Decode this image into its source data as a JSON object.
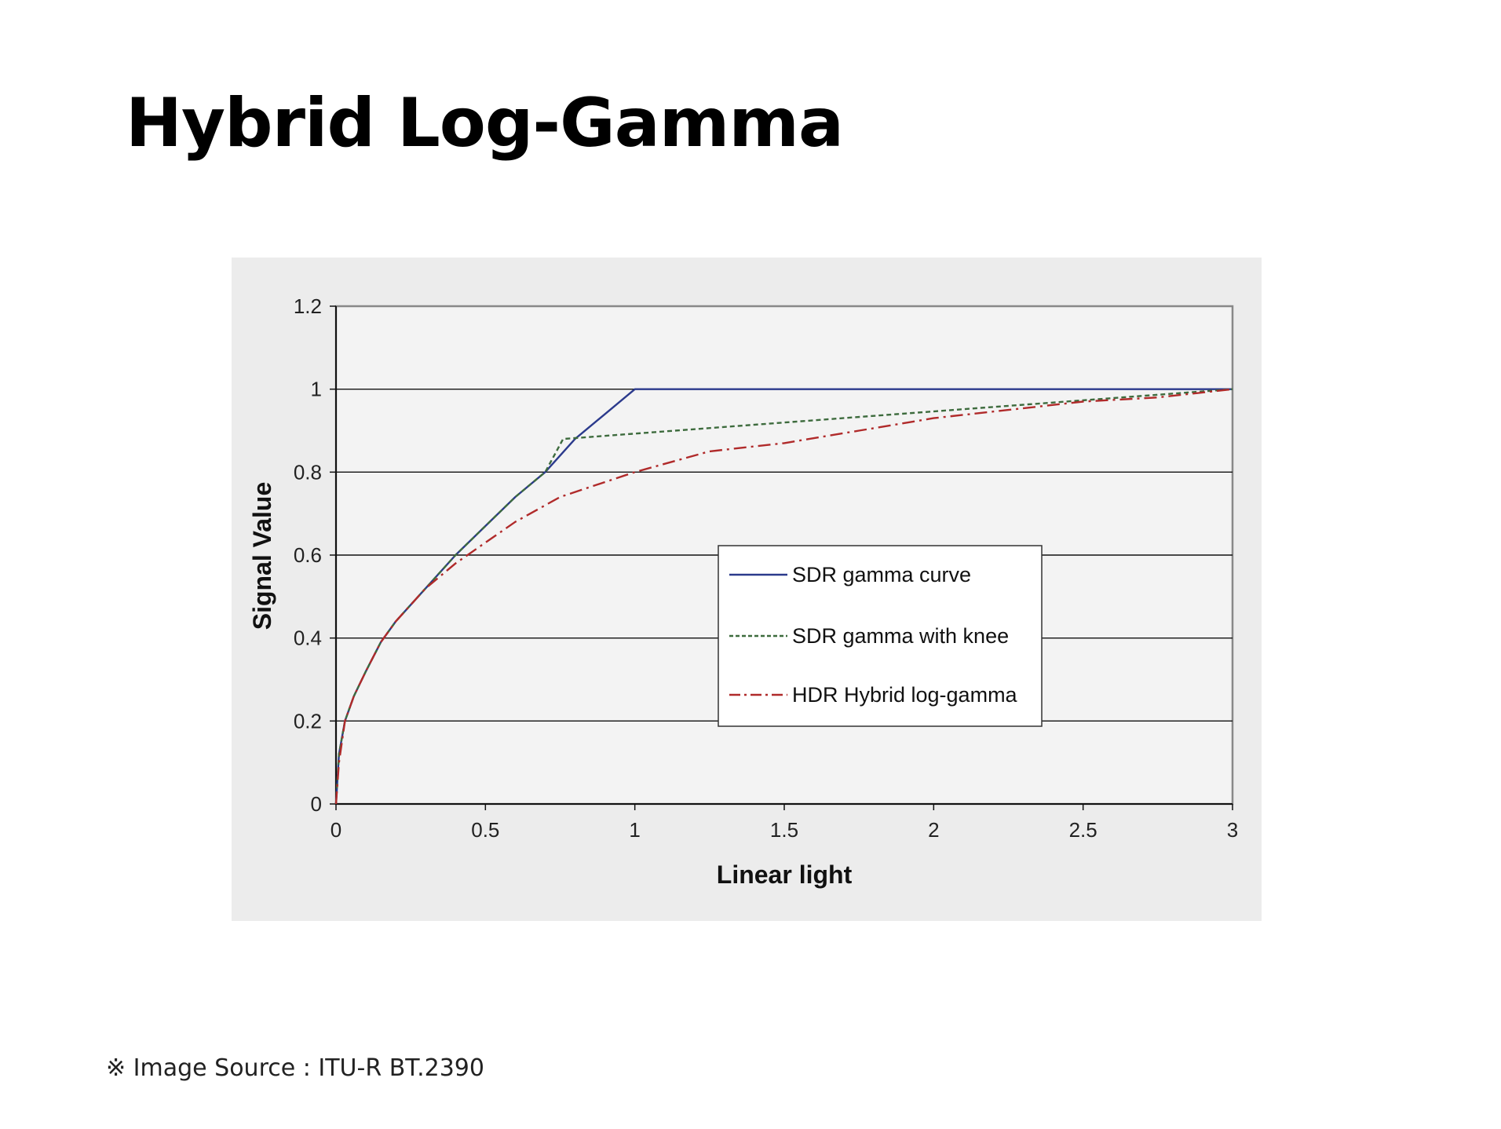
{
  "slide": {
    "title": "Hybrid Log-Gamma",
    "source_note": "※ Image Source : ITU-R BT.2390"
  },
  "chart_data": {
    "type": "line",
    "xlabel": "Linear light",
    "ylabel": "Signal Value",
    "xlim": [
      0,
      3
    ],
    "ylim": [
      0,
      1.2
    ],
    "x_ticks": [
      "0",
      "0.5",
      "1",
      "1.5",
      "2",
      "2.5",
      "3"
    ],
    "y_ticks": [
      "0",
      "0.2",
      "0.4",
      "0.6",
      "0.8",
      "1",
      "1.2"
    ],
    "grid": "horizontal",
    "legend_position": "center-right",
    "series": [
      {
        "name": "SDR gamma curve",
        "color": "#2b3a8c",
        "style": "solid",
        "x": [
          0,
          0.01,
          0.03,
          0.06,
          0.1,
          0.15,
          0.2,
          0.3,
          0.4,
          0.5,
          0.6,
          0.7,
          0.8,
          0.9,
          1.0,
          3.0
        ],
        "y": [
          0,
          0.12,
          0.2,
          0.26,
          0.32,
          0.39,
          0.44,
          0.52,
          0.6,
          0.67,
          0.74,
          0.8,
          0.88,
          0.94,
          1.0,
          1.0
        ]
      },
      {
        "name": "SDR gamma with knee",
        "color": "#3d6b3d",
        "style": "dashed",
        "x": [
          0,
          0.01,
          0.03,
          0.06,
          0.1,
          0.15,
          0.2,
          0.3,
          0.4,
          0.5,
          0.6,
          0.7,
          0.76,
          3.0
        ],
        "y": [
          0,
          0.12,
          0.2,
          0.26,
          0.32,
          0.39,
          0.44,
          0.52,
          0.6,
          0.67,
          0.74,
          0.8,
          0.88,
          1.0
        ]
      },
      {
        "name": "HDR Hybrid log-gamma",
        "color": "#b02a2a",
        "style": "dashdot",
        "x": [
          0,
          0.01,
          0.03,
          0.06,
          0.1,
          0.15,
          0.2,
          0.3,
          0.4,
          0.5,
          0.6,
          0.75,
          1.0,
          1.25,
          1.5,
          1.75,
          2.0,
          2.25,
          2.5,
          2.75,
          3.0
        ],
        "y": [
          0,
          0.1,
          0.2,
          0.26,
          0.32,
          0.39,
          0.44,
          0.52,
          0.58,
          0.63,
          0.68,
          0.74,
          0.8,
          0.85,
          0.87,
          0.9,
          0.93,
          0.95,
          0.97,
          0.98,
          1.0
        ]
      }
    ]
  }
}
